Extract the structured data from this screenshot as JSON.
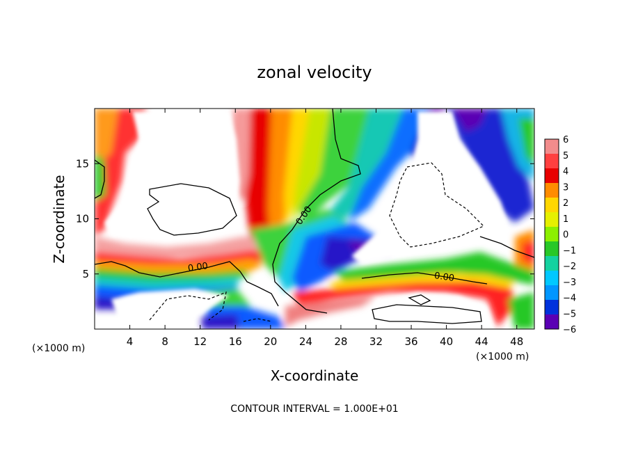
{
  "chart_data": {
    "type": "heatmap",
    "title": "zonal velocity",
    "xlabel": "X-coordinate",
    "ylabel": "Z-coordinate",
    "x_unit_left": "(×1000 m)",
    "x_unit_right": "(×1000 m)",
    "xlim": [
      0,
      50
    ],
    "ylim": [
      0,
      20
    ],
    "x_ticks": [
      4,
      8,
      12,
      16,
      20,
      24,
      28,
      32,
      36,
      40,
      44,
      48
    ],
    "y_ticks": [
      5,
      10,
      15
    ],
    "colorbar": {
      "levels": [
        6,
        5,
        4,
        3,
        2,
        1,
        0,
        -1,
        -2,
        -3,
        -4,
        -5,
        -6
      ],
      "labels": [
        "6",
        "5",
        "4",
        "3",
        "2",
        "1",
        "0",
        "−1",
        "−2",
        "−3",
        "−4",
        "−5",
        "−6"
      ],
      "colors": [
        "#f28c8c",
        "#ff4040",
        "#e80000",
        "#ff8c00",
        "#ffd700",
        "#e6f000",
        "#8cf000",
        "#28c828",
        "#14d2a0",
        "#00c8ff",
        "#0096ff",
        "#0032dc",
        "#5a00b4"
      ]
    },
    "contour_labels": [
      "0.00",
      "0.00",
      "0.00"
    ],
    "footer": "CONTOUR INTERVAL = 1.000E+01"
  }
}
